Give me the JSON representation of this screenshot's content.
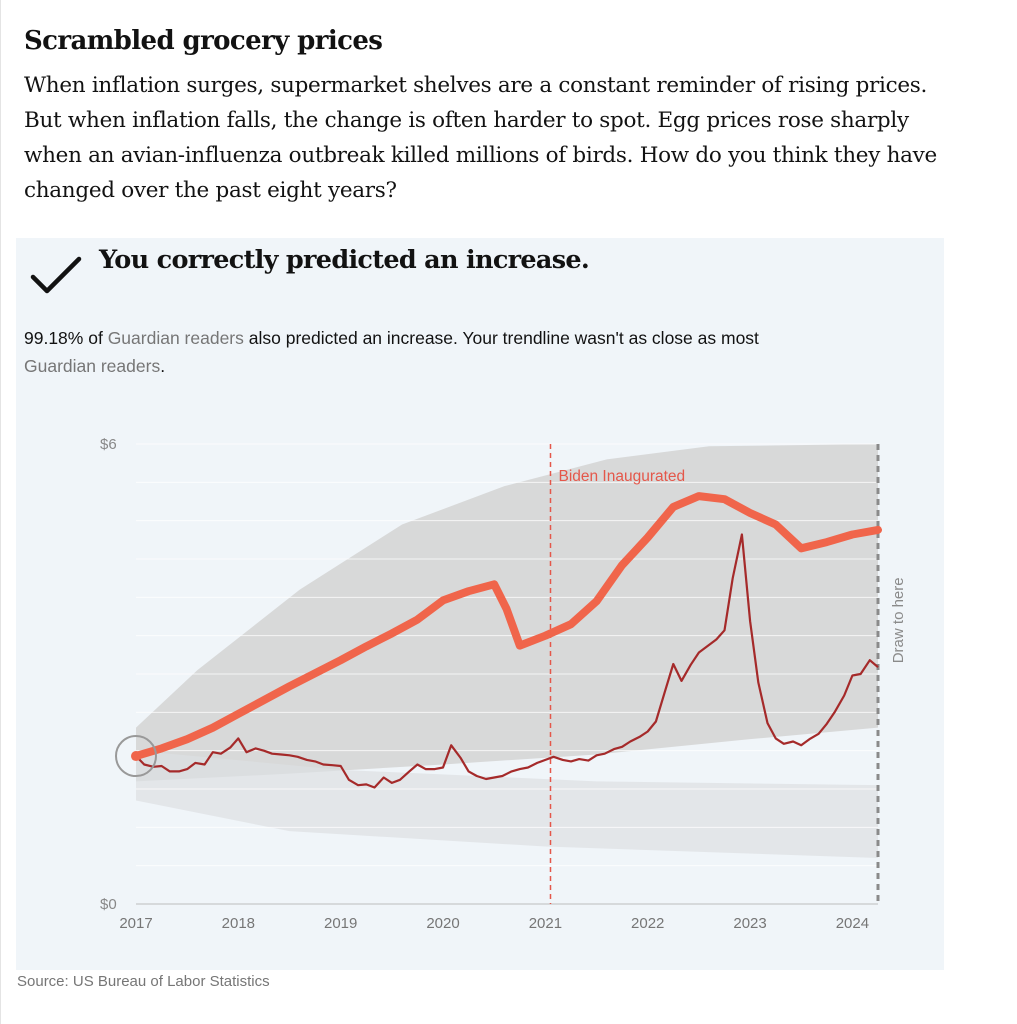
{
  "headline": "Scrambled grocery prices",
  "standfirst": "When inflation surges, supermarket shelves are a constant reminder of rising prices. But when inflation falls, the change is often harder to spot. Egg prices rose sharply when an avian-influenza outbreak killed millions of birds. How do you think they have changed over the past eight years?",
  "result": {
    "text": "You correctly predicted an increase.",
    "icon": "checkmark-icon"
  },
  "readers": {
    "pct": "99.18%",
    "of": " of ",
    "group1": "Guardian readers",
    "mid": " also predicted an increase. Your trendline wasn't as close as most ",
    "group2": "Guardian readers",
    "end": "."
  },
  "source": "Source: US Bureau of Labor Statistics",
  "colors": {
    "actual_line": "#a52a2a",
    "user_line": "#f0654b",
    "annotation": "#e4574a",
    "panel_bg": "#f0f5f9",
    "reader_band": "#d4d4d4",
    "draw_here": "#8a8a8a"
  },
  "chart_data": {
    "type": "line",
    "title": "",
    "xlabel": "",
    "ylabel": "",
    "ylim": [
      0,
      6
    ],
    "xlim": [
      2017,
      2024.25
    ],
    "y_tick_labels": [
      "$0",
      "$6"
    ],
    "x_tick_labels": [
      "2017",
      "2018",
      "2019",
      "2020",
      "2021",
      "2022",
      "2023",
      "2024"
    ],
    "grid": true,
    "annotations": [
      {
        "text": "Biden Inaugurated",
        "x": 2021.05
      },
      {
        "text": "Draw to here",
        "x": 2024.25
      }
    ],
    "reader_band": {
      "x": [
        2017,
        2024.25
      ],
      "lower": [
        1.6,
        2.3
      ],
      "upper": [
        2.3,
        6.0
      ]
    },
    "series": [
      {
        "x": [
          2017.0,
          2017.08,
          2017.17,
          2017.25,
          2017.33,
          2017.42,
          2017.5,
          2017.58,
          2017.67,
          2017.75,
          2017.83,
          2017.92,
          2018.0,
          2018.08,
          2018.17,
          2018.25,
          2018.33,
          2018.42,
          2018.5,
          2018.58,
          2018.67,
          2018.75,
          2018.83,
          2018.92,
          2019.0,
          2019.08,
          2019.17,
          2019.25,
          2019.33,
          2019.42,
          2019.5,
          2019.58,
          2019.67,
          2019.75,
          2019.83,
          2019.92,
          2020.0,
          2020.08,
          2020.17,
          2020.25,
          2020.33,
          2020.42,
          2020.5,
          2020.58,
          2020.67,
          2020.75,
          2020.83,
          2020.92,
          2021.0,
          2021.08,
          2021.17,
          2021.25,
          2021.33,
          2021.42,
          2021.5,
          2021.58,
          2021.67,
          2021.75,
          2021.83,
          2021.92,
          2022.0,
          2022.08,
          2022.17,
          2022.25,
          2022.33,
          2022.42,
          2022.5,
          2022.58,
          2022.67,
          2022.75,
          2022.83,
          2022.92,
          2023.0,
          2023.08,
          2023.17,
          2023.25,
          2023.33,
          2023.42,
          2023.5,
          2023.58,
          2023.67,
          2023.75,
          2023.83,
          2023.92,
          2024.0,
          2024.08,
          2024.17,
          2024.25
        ],
        "y": [
          1.93,
          1.82,
          1.79,
          1.8,
          1.73,
          1.73,
          1.76,
          1.84,
          1.82,
          1.98,
          1.96,
          2.04,
          2.16,
          1.98,
          2.03,
          2.0,
          1.96,
          1.95,
          1.94,
          1.92,
          1.88,
          1.86,
          1.82,
          1.81,
          1.8,
          1.62,
          1.55,
          1.56,
          1.52,
          1.65,
          1.58,
          1.62,
          1.73,
          1.82,
          1.76,
          1.76,
          1.78,
          2.07,
          1.91,
          1.73,
          1.67,
          1.63,
          1.65,
          1.67,
          1.73,
          1.76,
          1.78,
          1.84,
          1.88,
          1.92,
          1.88,
          1.86,
          1.89,
          1.87,
          1.94,
          1.96,
          2.02,
          2.05,
          2.12,
          2.18,
          2.25,
          2.38,
          2.78,
          3.13,
          2.91,
          3.12,
          3.28,
          3.36,
          3.45,
          3.57,
          4.25,
          4.82,
          3.69,
          2.89,
          2.36,
          2.16,
          2.09,
          2.12,
          2.07,
          2.15,
          2.22,
          2.35,
          2.51,
          2.72,
          2.98,
          3.0,
          3.18,
          3.09
        ]
      },
      {
        "x": [
          2017.0,
          2017.25,
          2017.5,
          2017.75,
          2018.0,
          2018.5,
          2019.0,
          2019.25,
          2019.5,
          2019.75,
          2020.0,
          2020.25,
          2020.5,
          2020.62,
          2020.75,
          2021.0,
          2021.25,
          2021.5,
          2021.75,
          2022.0,
          2022.25,
          2022.5,
          2022.75,
          2023.0,
          2023.25,
          2023.5,
          2023.75,
          2024.0,
          2024.25
        ],
        "y": [
          1.93,
          2.03,
          2.15,
          2.3,
          2.48,
          2.84,
          3.18,
          3.36,
          3.53,
          3.71,
          3.96,
          4.08,
          4.17,
          3.85,
          3.37,
          3.5,
          3.65,
          3.95,
          4.42,
          4.78,
          5.18,
          5.32,
          5.28,
          5.1,
          4.95,
          4.64,
          4.72,
          4.82,
          4.88
        ]
      }
    ]
  }
}
